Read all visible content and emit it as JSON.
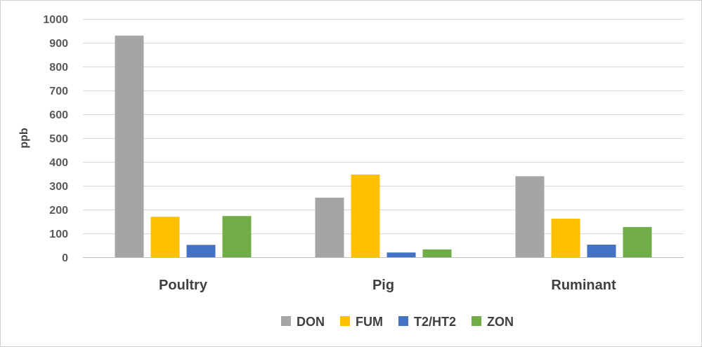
{
  "chart_data": {
    "type": "bar",
    "ylabel": "ppb",
    "xlabel": "",
    "ylim": [
      0,
      1000
    ],
    "yticks": [
      0,
      100,
      200,
      300,
      400,
      500,
      600,
      700,
      800,
      900,
      1000
    ],
    "grid": true,
    "legend_position": "bottom",
    "categories": [
      "Poultry",
      "Pig",
      "Ruminant"
    ],
    "series": [
      {
        "name": "DON",
        "color": "#a5a5a5",
        "values": [
          930,
          250,
          340
        ]
      },
      {
        "name": "FUM",
        "color": "#ffc000",
        "values": [
          170,
          347,
          162
        ]
      },
      {
        "name": "T2/HT2",
        "color": "#4472c4",
        "values": [
          52,
          20,
          53
        ]
      },
      {
        "name": "ZON",
        "color": "#70ad47",
        "values": [
          173,
          33,
          127
        ]
      }
    ]
  }
}
